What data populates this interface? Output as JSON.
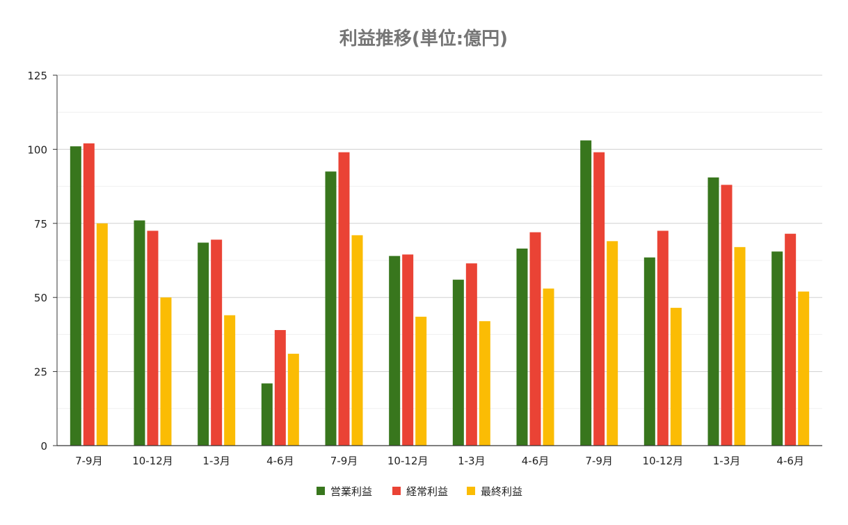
{
  "chart_data": {
    "type": "bar",
    "title": "利益推移(単位:億円)",
    "xlabel": "",
    "ylabel": "",
    "ylim": [
      0,
      125
    ],
    "yticks": [
      0,
      25,
      50,
      75,
      100,
      125
    ],
    "grid": true,
    "legend_position": "bottom",
    "categories": [
      "7-9月",
      "10-12月",
      "1-3月",
      "4-6月",
      "7-9月",
      "10-12月",
      "1-3月",
      "4-6月",
      "7-9月",
      "10-12月",
      "1-3月",
      "4-6月"
    ],
    "series": [
      {
        "name": "営業利益",
        "color": "#38761d",
        "values": [
          101,
          76,
          68.5,
          21,
          92.5,
          64,
          56,
          66.5,
          103,
          63.5,
          90.5,
          65.5
        ]
      },
      {
        "name": "経常利益",
        "color": "#ea4335",
        "values": [
          102,
          72.5,
          69.5,
          39,
          99,
          64.5,
          61.5,
          72,
          99,
          72.5,
          88,
          71.5
        ]
      },
      {
        "name": "最終利益",
        "color": "#fbbc04",
        "values": [
          75,
          50,
          44,
          31,
          71,
          43.5,
          42,
          53,
          69,
          46.5,
          67,
          52
        ]
      }
    ]
  }
}
